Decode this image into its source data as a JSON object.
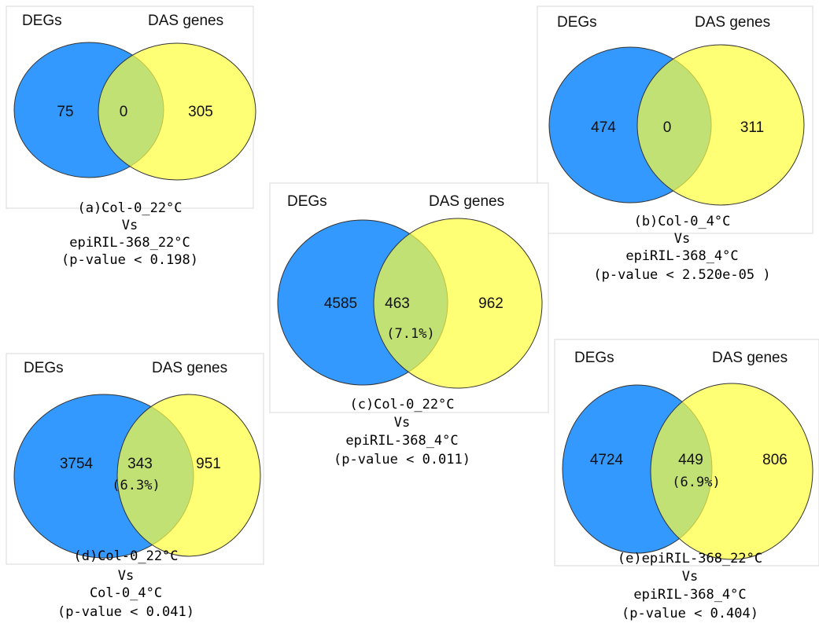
{
  "panels": [
    {
      "left_label": "DEGs",
      "right_label": "DAS genes",
      "left_only": "75",
      "overlap": "0",
      "right_only": "305",
      "caption": [
        "(a)Col-0_22°C",
        "Vs",
        "epiRIL-368_22°C",
        "(p-value < 0.198)"
      ]
    },
    {
      "left_label": "DEGs",
      "right_label": "DAS genes",
      "left_only": "474",
      "overlap": "0",
      "right_only": "311",
      "caption": [
        "(b)Col-0_4°C",
        "Vs",
        "epiRIL-368_4°C",
        "(p-value < 2.520e-05 )"
      ]
    },
    {
      "left_label": "DEGs",
      "right_label": "DAS genes",
      "left_only": "4585",
      "overlap": "463",
      "overlap_percent": "(7.1%)",
      "right_only": "962",
      "caption": [
        "(c)Col-0_22°C",
        "Vs",
        "epiRIL-368_4°C",
        "(p-value < 0.011)"
      ]
    },
    {
      "left_label": "DEGs",
      "right_label": "DAS genes",
      "left_only": "3754",
      "overlap": "343",
      "overlap_percent": "(6.3%)",
      "right_only": "951",
      "caption": [
        "(d)Col-0_22°C",
        "Vs",
        "Col-0_4°C",
        "(p-value < 0.041)"
      ]
    },
    {
      "left_label": "DEGs",
      "right_label": "DAS genes",
      "left_only": "4724",
      "overlap": "449",
      "overlap_percent": "(6.9%)",
      "right_only": "806",
      "caption": [
        "(e)epiRIL-368_22°C",
        "Vs",
        "epiRIL-368_4°C",
        "(p-value < 0.404)"
      ]
    }
  ]
}
